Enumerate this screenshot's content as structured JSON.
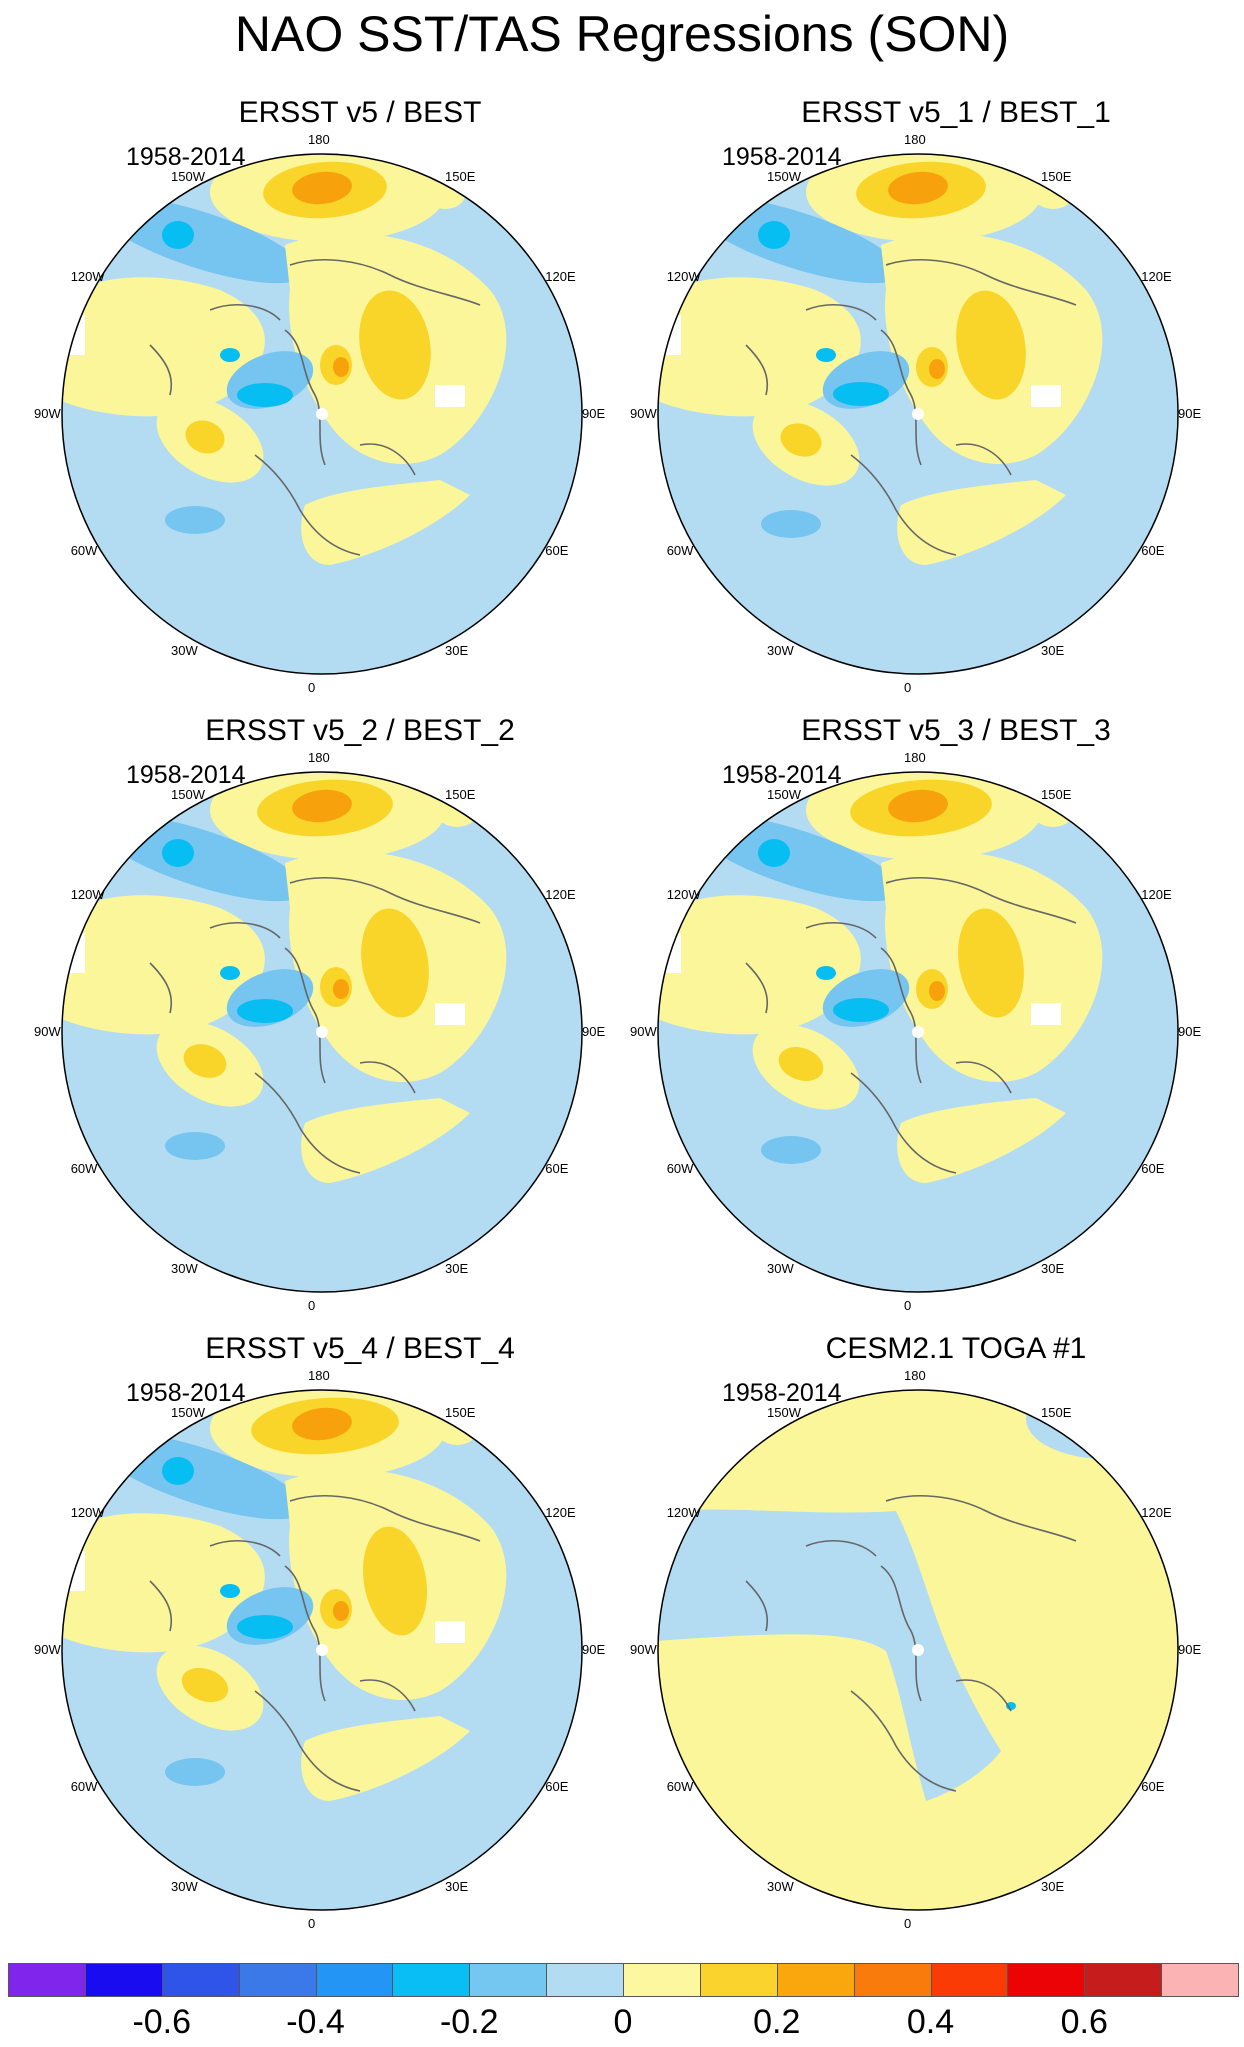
{
  "figure": {
    "title": "NAO SST/TAS Regressions (SON)"
  },
  "colors": {
    "ocean_neg": "#b3dcf2",
    "land_pos": "#fbf69a",
    "pos_mid": "#f9d52a",
    "pos_strong": "#f7a20c",
    "neg_mid": "#76c4f0",
    "neg_strong": "#06bef2",
    "coast": "#666666",
    "missing": "#ffffff"
  },
  "chart_data": {
    "type": "heatmap",
    "projection": "north polar stereographic",
    "lon_labels": [
      "180",
      "150E",
      "120E",
      "90E",
      "60E",
      "30E",
      "0",
      "30W",
      "60W",
      "90W",
      "120W",
      "150W"
    ],
    "lon_values": [
      180,
      150,
      120,
      90,
      60,
      30,
      0,
      -30,
      -60,
      -90,
      -120,
      -150
    ],
    "colorbar": {
      "levels": [
        -0.7,
        -0.6,
        -0.5,
        -0.4,
        -0.3,
        -0.2,
        -0.1,
        0,
        0.1,
        0.2,
        0.3,
        0.4,
        0.5,
        0.6,
        0.7
      ],
      "colors": [
        "#8026ec",
        "#1a0cf0",
        "#2f55e8",
        "#3a79e7",
        "#2295f5",
        "#09bef4",
        "#74c7f1",
        "#b1dcf2",
        "#fdf7a0",
        "#fad42c",
        "#faa70e",
        "#f97b0b",
        "#fb3b06",
        "#ec0303",
        "#c61c1c",
        "#fbb3b3"
      ],
      "tick_labels": [
        "-0.6",
        "-0.4",
        "-0.2",
        "0",
        "0.2",
        "0.4",
        "0.6"
      ],
      "tick_values": [
        -0.6,
        -0.4,
        -0.2,
        0,
        0.2,
        0.4,
        0.6
      ]
    },
    "panels": [
      {
        "title": "ERSST v5 / BEST",
        "period": "1958-2014",
        "pattern": "obs",
        "variant": 0
      },
      {
        "title": "ERSST v5_1 / BEST_1",
        "period": "1958-2014",
        "pattern": "obs",
        "variant": 1
      },
      {
        "title": "ERSST v5_2 / BEST_2",
        "period": "1958-2014",
        "pattern": "obs",
        "variant": 2
      },
      {
        "title": "ERSST v5_3 / BEST_3",
        "period": "1958-2014",
        "pattern": "obs",
        "variant": 3
      },
      {
        "title": "ERSST v5_4 / BEST_4",
        "period": "1958-2014",
        "pattern": "obs",
        "variant": 4
      },
      {
        "title": "CESM2.1 TOGA #1",
        "period": "1958-2014",
        "pattern": "model",
        "variant": 0
      }
    ]
  }
}
